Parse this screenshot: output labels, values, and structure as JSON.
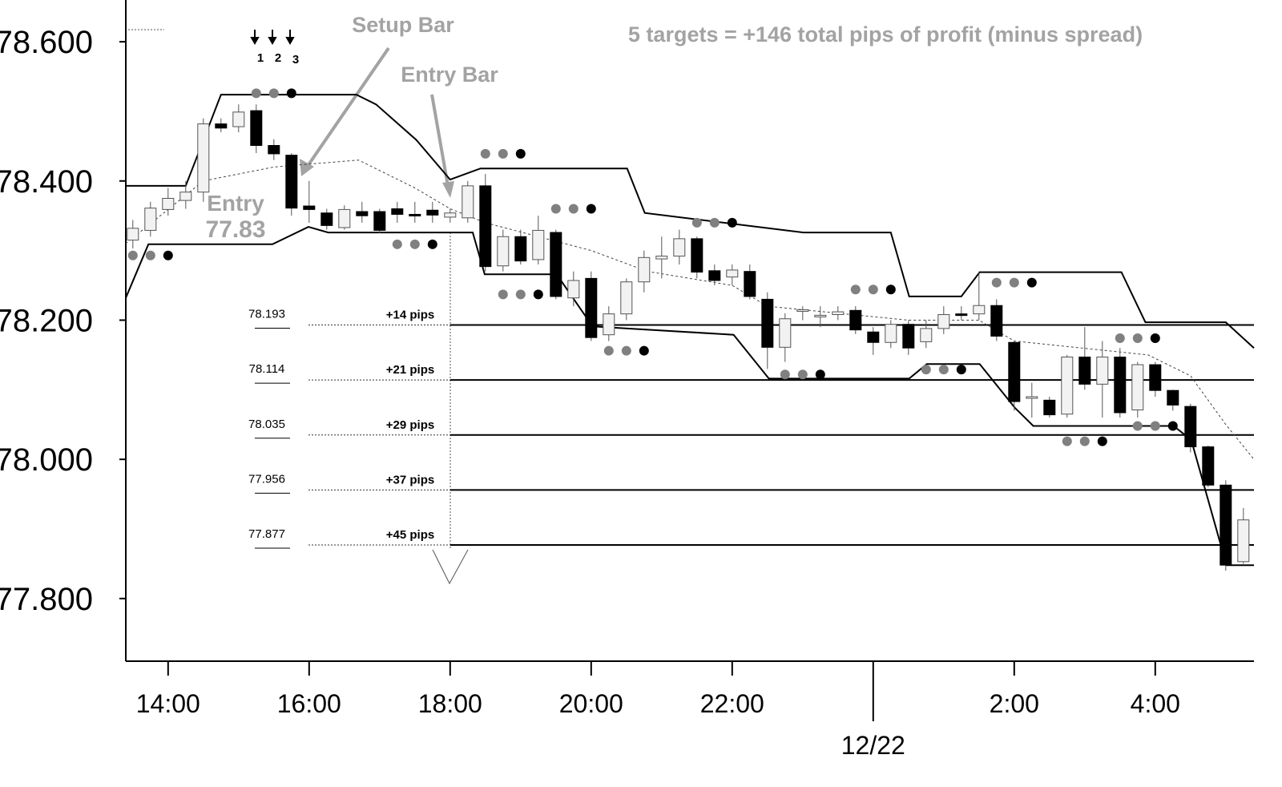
{
  "chart_data": {
    "type": "candlestick",
    "xlim": [
      13.4,
      29.4
    ],
    "ylim": [
      77.71,
      78.66
    ],
    "yticks": [
      {
        "value": 77.8,
        "label": "77.800"
      },
      {
        "value": 78.0,
        "label": "78.000"
      },
      {
        "value": 78.2,
        "label": "78.200"
      },
      {
        "value": 78.4,
        "label": "78.400"
      },
      {
        "value": 78.6,
        "label": "78.600"
      }
    ],
    "xticks": [
      {
        "value": 14,
        "label": "14:00"
      },
      {
        "value": 16,
        "label": "16:00"
      },
      {
        "value": 18,
        "label": "18:00"
      },
      {
        "value": 20,
        "label": "20:00"
      },
      {
        "value": 22,
        "label": "22:00"
      },
      {
        "value": 26,
        "label": "2:00"
      },
      {
        "value": 28,
        "label": "4:00"
      }
    ],
    "date_marker": {
      "value": 24,
      "label": "12/22"
    },
    "colors": {
      "up": "#f2f2f2",
      "down": "#000000",
      "band": "#000000",
      "dots": [
        "#808080",
        "#808080",
        "#000000"
      ]
    },
    "candles": {
      "x": [
        13.5,
        13.75,
        14,
        14.25,
        14.5,
        14.75,
        15,
        15.25,
        15.5,
        15.75,
        16,
        16.25,
        16.5,
        16.75,
        17,
        17.25,
        17.5,
        17.75,
        18,
        18.25,
        18.5,
        18.75,
        19,
        19.25,
        19.5,
        19.75,
        20,
        20.25,
        20.5,
        20.75,
        21,
        21.25,
        21.5,
        21.75,
        22,
        22.25,
        22.5,
        22.75,
        23,
        23.25,
        23.5,
        23.75,
        24,
        24.25,
        24.5,
        24.75,
        25,
        25.25,
        25.5,
        25.75,
        26,
        26.25,
        26.5,
        26.75,
        27,
        27.25,
        27.5,
        27.75,
        28,
        28.25,
        28.5,
        28.75,
        29,
        29.25
      ],
      "ohlc": [
        [
          78.315,
          78.344,
          78.303,
          78.332
        ],
        [
          78.329,
          78.37,
          78.32,
          78.361
        ],
        [
          78.359,
          78.39,
          78.35,
          78.375
        ],
        [
          78.372,
          78.4,
          78.36,
          78.384
        ],
        [
          78.384,
          78.49,
          78.37,
          78.482
        ],
        [
          78.482,
          78.49,
          78.47,
          78.476
        ],
        [
          78.478,
          78.51,
          78.47,
          78.499
        ],
        [
          78.501,
          78.51,
          78.44,
          78.451
        ],
        [
          78.451,
          78.46,
          78.43,
          78.439
        ],
        [
          78.437,
          78.44,
          78.35,
          78.361
        ],
        [
          78.364,
          78.4,
          78.34,
          78.359
        ],
        [
          78.354,
          78.36,
          78.33,
          78.336
        ],
        [
          78.333,
          78.365,
          78.33,
          78.359
        ],
        [
          78.356,
          78.37,
          78.34,
          78.35
        ],
        [
          78.356,
          78.36,
          78.325,
          78.329
        ],
        [
          78.36,
          78.37,
          78.34,
          78.352
        ],
        [
          78.352,
          78.37,
          78.34,
          78.351
        ],
        [
          78.358,
          78.37,
          78.34,
          78.351
        ],
        [
          78.348,
          78.36,
          78.34,
          78.354
        ],
        [
          78.347,
          78.4,
          78.34,
          78.393
        ],
        [
          78.393,
          78.41,
          78.27,
          78.277
        ],
        [
          78.278,
          78.33,
          78.27,
          78.32
        ],
        [
          78.32,
          78.33,
          78.28,
          78.285
        ],
        [
          78.287,
          78.35,
          78.28,
          78.329
        ],
        [
          78.326,
          78.33,
          78.23,
          78.234
        ],
        [
          78.232,
          78.27,
          78.22,
          78.257
        ],
        [
          78.26,
          78.27,
          78.17,
          78.175
        ],
        [
          78.179,
          78.22,
          78.17,
          78.209
        ],
        [
          78.209,
          78.26,
          78.2,
          78.255
        ],
        [
          78.255,
          78.3,
          78.24,
          78.29
        ],
        [
          78.288,
          78.32,
          78.26,
          78.292
        ],
        [
          78.292,
          78.33,
          78.28,
          78.317
        ],
        [
          78.317,
          78.32,
          78.26,
          78.269
        ],
        [
          78.271,
          78.28,
          78.25,
          78.257
        ],
        [
          78.262,
          78.28,
          78.25,
          78.272
        ],
        [
          78.27,
          78.28,
          78.23,
          78.234
        ],
        [
          78.23,
          78.24,
          78.13,
          78.161
        ],
        [
          78.161,
          78.21,
          78.14,
          78.202
        ],
        [
          78.214,
          78.22,
          78.2,
          78.215
        ],
        [
          78.205,
          78.22,
          78.19,
          78.207
        ],
        [
          78.208,
          78.22,
          78.2,
          78.212
        ],
        [
          78.214,
          78.22,
          78.18,
          78.186
        ],
        [
          78.183,
          78.19,
          78.15,
          78.168
        ],
        [
          78.168,
          78.2,
          78.16,
          78.194
        ],
        [
          78.194,
          78.2,
          78.15,
          78.16
        ],
        [
          78.169,
          78.2,
          78.16,
          78.188
        ],
        [
          78.188,
          78.22,
          78.18,
          78.208
        ],
        [
          78.209,
          78.22,
          78.2,
          78.208
        ],
        [
          78.209,
          78.27,
          78.2,
          78.221
        ],
        [
          78.221,
          78.23,
          78.17,
          78.177
        ],
        [
          78.168,
          78.17,
          78.07,
          78.083
        ],
        [
          78.09,
          78.11,
          78.06,
          78.09
        ],
        [
          78.085,
          78.09,
          78.06,
          78.064
        ],
        [
          78.065,
          78.15,
          78.06,
          78.147
        ],
        [
          78.147,
          78.19,
          78.1,
          78.108
        ],
        [
          78.108,
          78.17,
          78.06,
          78.147
        ],
        [
          78.147,
          78.16,
          78.06,
          78.067
        ],
        [
          78.071,
          78.14,
          78.06,
          78.136
        ],
        [
          78.136,
          78.14,
          78.09,
          78.099
        ],
        [
          78.099,
          78.1,
          78.07,
          78.078
        ],
        [
          78.076,
          78.08,
          78.01,
          78.018
        ],
        [
          78.018,
          78.02,
          77.96,
          77.963
        ],
        [
          77.963,
          77.97,
          77.84,
          77.848
        ],
        [
          77.853,
          77.93,
          77.85,
          77.913
        ]
      ]
    },
    "upper_band": {
      "x": [
        13.4,
        14.25,
        14.48,
        14.75,
        16.67,
        16.95,
        17.52,
        18.0,
        18.43,
        20.51,
        20.76,
        23.01,
        24.25,
        24.51,
        25.25,
        25.51,
        27.52,
        27.86,
        29.0,
        29.4
      ],
      "y": [
        78.393,
        78.393,
        78.453,
        78.524,
        78.524,
        78.51,
        78.459,
        78.402,
        78.418,
        78.418,
        78.354,
        78.326,
        78.326,
        78.234,
        78.234,
        78.269,
        78.269,
        78.197,
        78.197,
        78.16
      ]
    },
    "lower_band": {
      "x": [
        13.4,
        13.72,
        15.48,
        15.99,
        16.27,
        18.32,
        18.49,
        19.51,
        20.02,
        22.02,
        22.52,
        24.51,
        24.76,
        25.51,
        26.01,
        26.27,
        28.26,
        28.51,
        29.01,
        29.4
      ],
      "y": [
        78.232,
        78.309,
        78.309,
        78.334,
        78.326,
        78.326,
        78.266,
        78.266,
        78.191,
        78.179,
        78.116,
        78.116,
        78.137,
        78.137,
        78.074,
        78.048,
        78.048,
        78.028,
        77.848,
        77.848
      ]
    },
    "mid_band": {
      "x": [
        13.4,
        14.5,
        15.5,
        16.7,
        17.5,
        18.0,
        18.5,
        20.0,
        20.8,
        22.0,
        22.5,
        24.5,
        25.5,
        26.0,
        27.9,
        28.5,
        29.0,
        29.4
      ],
      "y": [
        78.31,
        78.4,
        78.42,
        78.43,
        78.39,
        78.36,
        78.34,
        78.3,
        78.27,
        78.25,
        78.22,
        78.2,
        78.2,
        78.17,
        78.15,
        78.12,
        78.05,
        78.0
      ]
    },
    "dots": [
      [
        13.75,
        78.293
      ],
      [
        15.5,
        78.526
      ],
      [
        17.5,
        78.309
      ],
      [
        18.75,
        78.439
      ],
      [
        19.75,
        78.36
      ],
      [
        19.0,
        78.237
      ],
      [
        20.5,
        78.156
      ],
      [
        21.75,
        78.34
      ],
      [
        23.0,
        78.122
      ],
      [
        24.0,
        78.244
      ],
      [
        25.0,
        78.129
      ],
      [
        26.0,
        78.254
      ],
      [
        27.0,
        78.026
      ],
      [
        27.75,
        78.174
      ],
      [
        28.0,
        78.048
      ]
    ],
    "targets": [
      {
        "price": 78.193,
        "label": "+14 pips"
      },
      {
        "price": 78.114,
        "label": "+21 pips"
      },
      {
        "price": 78.035,
        "label": "+29 pips"
      },
      {
        "price": 77.956,
        "label": "+37 pips"
      },
      {
        "price": 77.877,
        "label": "+45 pips"
      }
    ],
    "annotations": {
      "summary": "5 targets = +146 total pips of profit (minus spread)",
      "setup_bar": "Setup Bar",
      "entry_bar": "Entry Bar",
      "entry": "Entry",
      "entry_price": 77.83,
      "bar_numbers": [
        "1",
        "2",
        "3"
      ]
    }
  }
}
